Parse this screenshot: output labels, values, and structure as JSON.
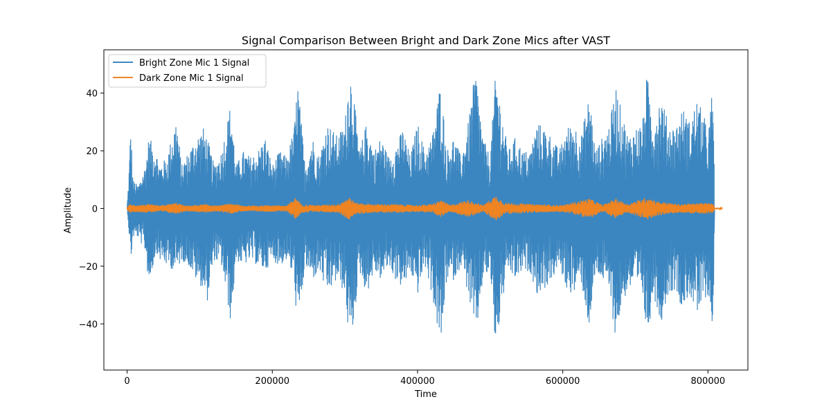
{
  "chart_data": {
    "type": "line",
    "title": "Signal Comparison Between Bright and Dark Zone Mics after VAST",
    "xlabel": "Time",
    "ylabel": "Amplitude",
    "xlim": [
      -32000,
      855000
    ],
    "ylim": [
      -56,
      55
    ],
    "x_ticks": [
      0,
      200000,
      400000,
      600000,
      800000
    ],
    "x_tick_labels": [
      "0",
      "200000",
      "400000",
      "600000",
      "800000"
    ],
    "y_ticks": [
      -40,
      -20,
      0,
      20,
      40
    ],
    "y_tick_labels": [
      "−40",
      "−20",
      "0",
      "20",
      "40"
    ],
    "grid": false,
    "legend_position": "upper-left",
    "series": [
      {
        "name": "Bright Zone Mic 1 Signal",
        "color": "#3b86c0",
        "envelope": {
          "x": [
            0,
            3000,
            5000,
            8000,
            15000,
            25000,
            30000,
            40000,
            45000,
            55000,
            68000,
            75000,
            85000,
            95000,
            105000,
            110000,
            120000,
            130000,
            143000,
            150000,
            160000,
            170000,
            180000,
            190000,
            200000,
            210000,
            220000,
            230000,
            235000,
            245000,
            255000,
            265000,
            275000,
            290000,
            300000,
            306000,
            310000,
            320000,
            330000,
            340000,
            350000,
            360000,
            370000,
            380000,
            390000,
            400000,
            410000,
            420000,
            432000,
            440000,
            450000,
            460000,
            470000,
            480000,
            490000,
            500000,
            508000,
            515000,
            525000,
            535000,
            545000,
            555000,
            565000,
            575000,
            585000,
            595000,
            605000,
            615000,
            625000,
            637000,
            645000,
            655000,
            665000,
            673000,
            680000,
            690000,
            700000,
            710000,
            716000,
            725000,
            735000,
            745000,
            755000,
            765000,
            775000,
            785000,
            795000,
            800000,
            805000,
            808000,
            809000,
            820000
          ],
          "upper": [
            0,
            15,
            30,
            10,
            8,
            15,
            25,
            20,
            15,
            18,
            32,
            15,
            20,
            25,
            28,
            25,
            15,
            20,
            37,
            15,
            20,
            18,
            20,
            25,
            15,
            20,
            18,
            28,
            45,
            15,
            25,
            18,
            30,
            25,
            30,
            49,
            45,
            20,
            30,
            20,
            25,
            18,
            22,
            28,
            18,
            30,
            20,
            25,
            45,
            20,
            25,
            18,
            30,
            49,
            25,
            18,
            49,
            35,
            20,
            25,
            20,
            20,
            30,
            28,
            25,
            20,
            28,
            30,
            25,
            40,
            20,
            25,
            30,
            43,
            35,
            25,
            28,
            30,
            47,
            30,
            40,
            30,
            28,
            35,
            30,
            38,
            32,
            25,
            39,
            37,
            0,
            0
          ],
          "lower": [
            0,
            -10,
            -19,
            -10,
            -10,
            -15,
            -27,
            -15,
            -18,
            -20,
            -22,
            -18,
            -20,
            -25,
            -28,
            -33,
            -18,
            -20,
            -40,
            -18,
            -20,
            -18,
            -20,
            -22,
            -18,
            -20,
            -18,
            -25,
            -44,
            -20,
            -25,
            -22,
            -30,
            -25,
            -30,
            -47,
            -44,
            -22,
            -30,
            -22,
            -25,
            -20,
            -25,
            -28,
            -22,
            -30,
            -20,
            -30,
            -49,
            -25,
            -25,
            -20,
            -30,
            -46,
            -25,
            -22,
            -51,
            -35,
            -22,
            -25,
            -22,
            -22,
            -30,
            -28,
            -25,
            -20,
            -28,
            -30,
            -25,
            -43,
            -22,
            -25,
            -30,
            -46,
            -35,
            -28,
            -28,
            -30,
            -46,
            -30,
            -40,
            -30,
            -28,
            -35,
            -30,
            -38,
            -32,
            -30,
            -40,
            -38,
            0,
            0
          ]
        }
      },
      {
        "name": "Dark Zone Mic 1 Signal",
        "color": "#ef8422",
        "envelope": {
          "x": [
            0,
            3000,
            10000,
            30000,
            45000,
            68000,
            80000,
            110000,
            125000,
            143000,
            160000,
            200000,
            220000,
            232000,
            240000,
            260000,
            290000,
            306000,
            315000,
            340000,
            370000,
            400000,
            420000,
            432000,
            445000,
            470000,
            490000,
            508000,
            520000,
            560000,
            600000,
            637000,
            655000,
            673000,
            690000,
            716000,
            730000,
            760000,
            800000,
            808000,
            809000,
            820000
          ],
          "upper": [
            0.5,
            1.5,
            1.2,
            1.5,
            1,
            2,
            1,
            1.5,
            1,
            1.8,
            1,
            1.2,
            1,
            4,
            1.5,
            1.2,
            1.5,
            4,
            2,
            1.5,
            1.5,
            1.2,
            1.5,
            3,
            1.2,
            3,
            1.2,
            4.5,
            2,
            1.5,
            1.2,
            3.5,
            1.2,
            3.5,
            1.5,
            4,
            2.5,
            1.5,
            2,
            1.5,
            0.3,
            0.2
          ],
          "lower": [
            -0.5,
            -1.5,
            -1.2,
            -1.5,
            -1,
            -2,
            -1,
            -1.5,
            -1,
            -1.8,
            -1,
            -1.2,
            -1,
            -4,
            -1.5,
            -1.2,
            -1.5,
            -4,
            -2,
            -1.5,
            -1.5,
            -1.2,
            -1.5,
            -3,
            -1.2,
            -3,
            -1.2,
            -4.5,
            -2,
            -1.5,
            -1.2,
            -3.5,
            -1.2,
            -3.5,
            -1.5,
            -4,
            -2.5,
            -1.5,
            -2,
            -1.5,
            -0.3,
            -0.2
          ]
        }
      }
    ]
  }
}
